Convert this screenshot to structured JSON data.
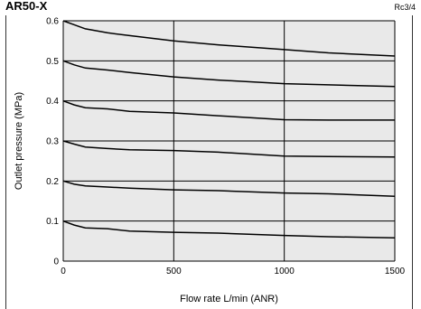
{
  "header": {
    "title": "AR50-X",
    "corner_note": "Rc3/4"
  },
  "chart_data": {
    "type": "line",
    "title": "",
    "xlabel": "Flow rate L/min (ANR)",
    "ylabel": "Outlet pressure (MPa)",
    "xlim": [
      0,
      1500
    ],
    "ylim": [
      0,
      0.6
    ],
    "x_ticks": [
      0,
      500,
      1000,
      1500
    ],
    "x_tick_labels": [
      "0",
      "500",
      "1000",
      "1500"
    ],
    "y_ticks": [
      0,
      0.1,
      0.2,
      0.3,
      0.4,
      0.5,
      0.6
    ],
    "y_tick_labels": [
      "0",
      "0.1",
      "0.2",
      "0.3",
      "0.4",
      "0.5",
      "0.6"
    ],
    "grid": true,
    "legend": "none",
    "colors": {
      "background": "#e9e9e9",
      "line": "#000000"
    },
    "x": [
      0,
      50,
      100,
      200,
      300,
      500,
      700,
      1000,
      1200,
      1500
    ],
    "series": [
      {
        "values": [
          0.6,
          0.59,
          0.58,
          0.57,
          0.563,
          0.55,
          0.54,
          0.528,
          0.52,
          0.512
        ]
      },
      {
        "values": [
          0.5,
          0.49,
          0.482,
          0.477,
          0.471,
          0.46,
          0.452,
          0.443,
          0.44,
          0.436
        ]
      },
      {
        "values": [
          0.4,
          0.39,
          0.383,
          0.38,
          0.374,
          0.37,
          0.363,
          0.353,
          0.352,
          0.352
        ]
      },
      {
        "values": [
          0.3,
          0.292,
          0.285,
          0.281,
          0.278,
          0.276,
          0.272,
          0.262,
          0.261,
          0.26
        ]
      },
      {
        "values": [
          0.2,
          0.192,
          0.188,
          0.185,
          0.182,
          0.178,
          0.176,
          0.17,
          0.168,
          0.162
        ]
      },
      {
        "values": [
          0.1,
          0.09,
          0.083,
          0.081,
          0.075,
          0.072,
          0.07,
          0.064,
          0.061,
          0.058
        ]
      }
    ]
  }
}
